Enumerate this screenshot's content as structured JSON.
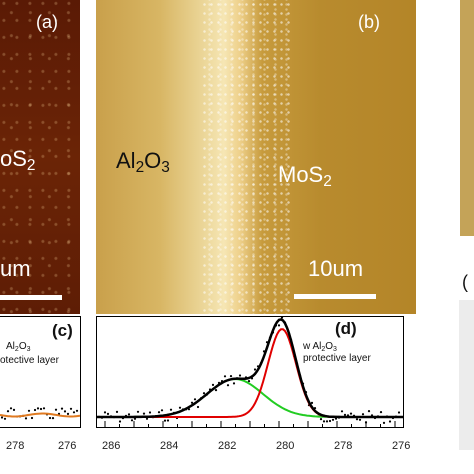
{
  "panel_a": {
    "letter": "(a)",
    "material_label_prefix": "oS",
    "material_label_sub": "2",
    "scale_label": "um"
  },
  "panel_b": {
    "letter": "(b)",
    "left_label_1": "Al",
    "left_sub_1": "2",
    "left_label_2": "O",
    "left_sub_2": "3",
    "right_label": "MoS",
    "right_sub": "2",
    "scale_label": "10um"
  },
  "panel_c": {
    "letter": "(c)",
    "ann_line1_a": "Al",
    "ann_line1_sub1": "2",
    "ann_line1_b": "O",
    "ann_line1_sub2": "3",
    "ann_line2": "otective layer",
    "x_ticks": [
      "278",
      "276"
    ]
  },
  "panel_d": {
    "letter": "(d)",
    "ann_line1_a": "w Al",
    "ann_line1_sub1": "2",
    "ann_line1_b": "O",
    "ann_line1_sub2": "3",
    "ann_line2": "protective layer",
    "x_ticks": [
      "286",
      "284",
      "282",
      "280",
      "278",
      "276"
    ]
  },
  "panel_e": {
    "letter": "("
  },
  "colors": {
    "fit_total": "#000000",
    "fit_peak_red": "#e00000",
    "fit_peak_green": "#22cc22",
    "data_points": "#000000",
    "residual_orange": "#e07a20"
  }
}
